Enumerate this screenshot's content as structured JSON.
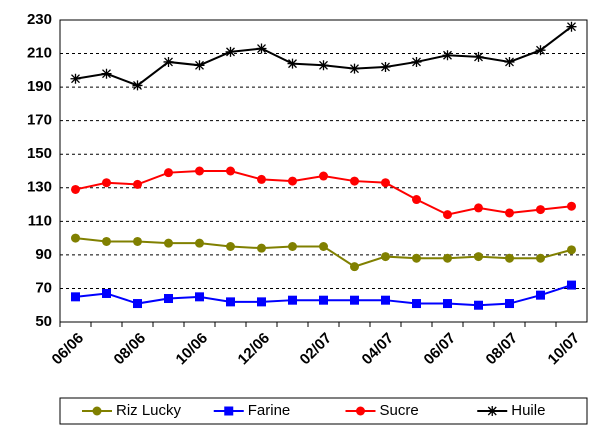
{
  "chart_data": {
    "type": "line",
    "categories": [
      "06/06",
      null,
      "08/06",
      null,
      "10/06",
      null,
      "12/06",
      null,
      "02/07",
      null,
      "04/07",
      null,
      "06/07",
      null,
      "08/07",
      null,
      "10/07"
    ],
    "series": [
      {
        "name": "Riz Lucky",
        "color": "#808000",
        "marker": "circle",
        "values": [
          100,
          98,
          98,
          97,
          97,
          95,
          94,
          95,
          95,
          83,
          89,
          88,
          88,
          89,
          88,
          88,
          93
        ]
      },
      {
        "name": "Farine",
        "color": "#0000ff",
        "marker": "square",
        "values": [
          65,
          67,
          61,
          64,
          65,
          62,
          62,
          63,
          63,
          63,
          63,
          61,
          61,
          60,
          61,
          66,
          72
        ]
      },
      {
        "name": "Sucre",
        "color": "#ff0000",
        "marker": "circle",
        "values": [
          129,
          133,
          132,
          139,
          140,
          140,
          135,
          134,
          137,
          134,
          133,
          123,
          114,
          118,
          115,
          117,
          119
        ]
      },
      {
        "name": "Huile",
        "color": "#000000",
        "marker": "star",
        "values": [
          195,
          198,
          191,
          205,
          203,
          211,
          213,
          204,
          203,
          201,
          202,
          205,
          209,
          208,
          205,
          212,
          226
        ]
      }
    ],
    "ylim": [
      50,
      230
    ],
    "yticks": [
      50,
      70,
      90,
      110,
      130,
      150,
      170,
      190,
      210,
      230
    ],
    "grid": true,
    "legend": "bottom"
  }
}
